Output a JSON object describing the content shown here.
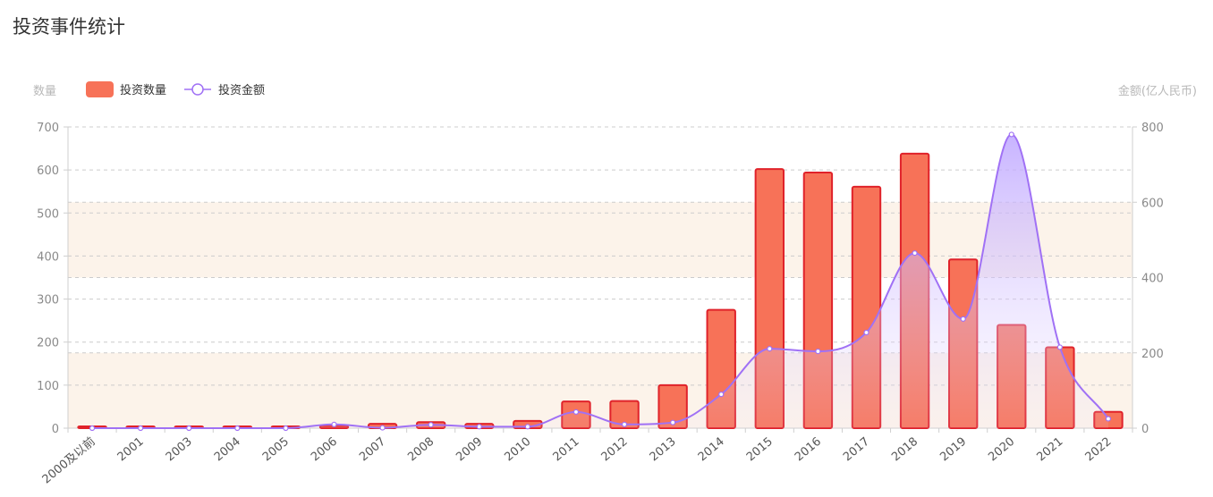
{
  "page": {
    "title": "投资事件统计"
  },
  "chart_data": {
    "type": "bar",
    "categories": [
      "2000及以前",
      "2001",
      "2003",
      "2004",
      "2005",
      "2006",
      "2007",
      "2008",
      "2009",
      "2010",
      "2011",
      "2012",
      "2013",
      "2014",
      "2015",
      "2016",
      "2017",
      "2018",
      "2019",
      "2020",
      "2021",
      "2022"
    ],
    "series": [
      {
        "name": "投资数量",
        "type": "bar",
        "axis": "left",
        "values": [
          3,
          2,
          3,
          1,
          3,
          5,
          10,
          14,
          10,
          17,
          62,
          63,
          100,
          275,
          602,
          594,
          561,
          638,
          392,
          240,
          188,
          38
        ]
      },
      {
        "name": "投资金额",
        "type": "line",
        "axis": "right",
        "smooth": true,
        "values": [
          0,
          0,
          0,
          0,
          0,
          10,
          1,
          9,
          4,
          4,
          43,
          10,
          15,
          90,
          211,
          204,
          254,
          465,
          290,
          780,
          215,
          25
        ]
      }
    ],
    "ylabel": "数量",
    "y2label": "金额(亿人民币)",
    "ylim": [
      0,
      700
    ],
    "yticks": [
      0,
      100,
      200,
      300,
      400,
      500,
      600,
      700
    ],
    "y2lim": [
      0,
      800
    ],
    "y2ticks": [
      0,
      200,
      400,
      600,
      800
    ],
    "bands": [
      [
        0,
        200
      ],
      [
        400,
        600
      ]
    ],
    "legend": "top-left",
    "grid": true,
    "colors": {
      "bar_fill": "#f77258",
      "bar_stroke": "#e0222a",
      "line": "#a071f5",
      "band": "#fcf3ea",
      "grid": "#cccccc"
    }
  }
}
